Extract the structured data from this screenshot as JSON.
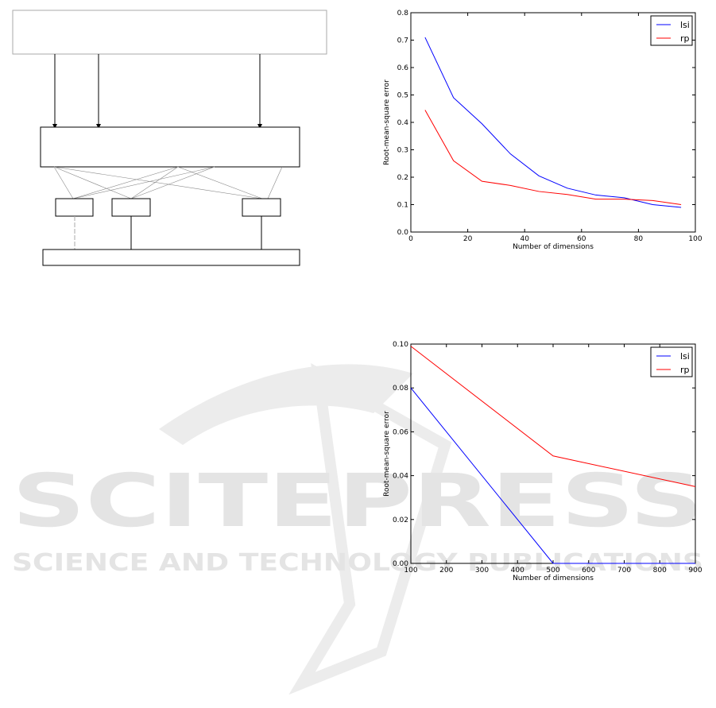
{
  "watermark": {
    "logo_text": "SCITEPRESS",
    "tagline": "SCIENCE AND TECHNOLOGY PUBLICATIONS"
  },
  "diagram": {
    "note": ""
  },
  "chart_data": [
    {
      "type": "line",
      "xlabel": "Number of dimensions",
      "ylabel": "Root-mean-square error",
      "xlim": [
        0,
        100
      ],
      "ylim": [
        0,
        0.8
      ],
      "xticks": [
        "0",
        "20",
        "40",
        "60",
        "80",
        "100"
      ],
      "yticks": [
        "0.0",
        "0.1",
        "0.2",
        "0.3",
        "0.4",
        "0.5",
        "0.6",
        "0.7",
        "0.8"
      ],
      "grid": false,
      "legend": "top-right",
      "x": [
        5,
        15,
        25,
        35,
        45,
        55,
        65,
        75,
        85,
        95
      ],
      "series": [
        {
          "name": "lsi",
          "color": "#0000ff",
          "values": [
            0.71,
            0.49,
            0.395,
            0.285,
            0.205,
            0.16,
            0.135,
            0.125,
            0.1,
            0.09
          ]
        },
        {
          "name": "rp",
          "color": "#ff0000",
          "values": [
            0.445,
            0.26,
            0.185,
            0.17,
            0.148,
            0.137,
            0.12,
            0.12,
            0.115,
            0.1
          ]
        }
      ]
    },
    {
      "type": "line",
      "xlabel": "Number of dimensions",
      "ylabel": "Root-mean-square error",
      "xlim": [
        100,
        900
      ],
      "ylim": [
        0,
        0.1
      ],
      "xticks": [
        "100",
        "200",
        "300",
        "400",
        "500",
        "600",
        "700",
        "800",
        "900"
      ],
      "yticks": [
        "0.00",
        "0.02",
        "0.04",
        "0.06",
        "0.08",
        "0.10"
      ],
      "grid": false,
      "legend": "top-right",
      "x": [
        100,
        500,
        900
      ],
      "series": [
        {
          "name": "lsi",
          "color": "#0000ff",
          "values": [
            0.08,
            0.0,
            0.0
          ]
        },
        {
          "name": "rp",
          "color": "#ff0000",
          "values": [
            0.099,
            0.049,
            0.035
          ]
        }
      ]
    }
  ]
}
